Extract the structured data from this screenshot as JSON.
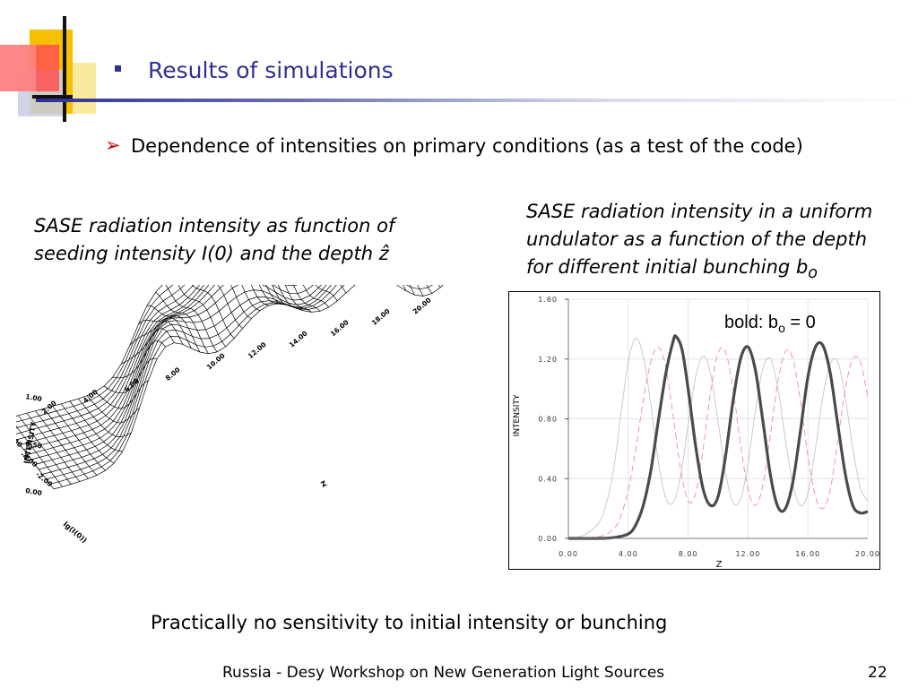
{
  "slide": {
    "title": "Results of simulations",
    "subtitle": "Dependence of intensities on primary conditions (as a test of the code)",
    "left_caption": {
      "line1": "SASE radiation intensity as function of",
      "line2": "seeding intensity I(0) and the depth ẑ"
    },
    "right_caption": {
      "line1": "SASE radiation intensity in a uniform",
      "line2": "undulator as a function of the depth",
      "line3_main": "for different initial bunching b",
      "line3_sub": "o"
    },
    "conclusion": "Practically no sensitivity to initial intensity or bunching",
    "footer": "Russia - Desy Workshop on New Generation Light Sources",
    "page_number": "22",
    "colors": {
      "title": "#2e3192",
      "arrow": "#cc0000",
      "deco_yellow": "#f5c000",
      "deco_red": "#ff5050"
    }
  },
  "chart_data": [
    {
      "type": "surface",
      "zlabel": "INTENSITY",
      "xlabel": "Z",
      "ylabel": "lg(I(0))",
      "z_ticks": [
        "0.00",
        "0.50",
        "1.00"
      ],
      "x_ticks": [
        "2.00",
        "4.00",
        "6.00",
        "8.00",
        "10.00",
        "12.00",
        "14.00",
        "16.00",
        "18.00",
        "20.00"
      ],
      "y_ticks": [
        "-2.00",
        "-4.00",
        "-6.00"
      ],
      "x_range": [
        0,
        20
      ],
      "y_range": [
        -7,
        0
      ],
      "z_range": [
        0,
        1.4
      ]
    },
    {
      "type": "line",
      "xlabel": "Z",
      "ylabel": "INTENSITY",
      "xlim": [
        0,
        20
      ],
      "ylim": [
        0,
        1.6
      ],
      "x_ticks": [
        "0.00",
        "4.00",
        "8.00",
        "12.00",
        "16.00",
        "20.00"
      ],
      "y_ticks": [
        "0.00",
        "0.40",
        "0.80",
        "1.20",
        "1.60"
      ],
      "annotation": {
        "main": "bold:  b",
        "sub": "o",
        "tail": " = 0"
      },
      "grid": true,
      "series": [
        {
          "style": "bold",
          "x": [
            0,
            2,
            3,
            4,
            4.5,
            5,
            5.5,
            6,
            6.5,
            7,
            7.2,
            7.6,
            8,
            8.5,
            9,
            9.5,
            10,
            10.5,
            11,
            11.5,
            12,
            12.5,
            13,
            13.5,
            14,
            14.5,
            15,
            15.5,
            16,
            16.5,
            17,
            17.5,
            18,
            18.5,
            19,
            19.5,
            20
          ],
          "y": [
            0,
            0,
            0.005,
            0.03,
            0.09,
            0.22,
            0.45,
            0.78,
            1.1,
            1.32,
            1.35,
            1.26,
            1.0,
            0.62,
            0.33,
            0.22,
            0.28,
            0.55,
            0.92,
            1.2,
            1.28,
            1.12,
            0.78,
            0.42,
            0.21,
            0.2,
            0.38,
            0.72,
            1.08,
            1.28,
            1.29,
            1.1,
            0.76,
            0.43,
            0.22,
            0.17,
            0.18
          ]
        },
        {
          "style": "dashed",
          "x": [
            0,
            2,
            3,
            3.5,
            4,
            4.5,
            5,
            5.5,
            6,
            6.5,
            7,
            7.5,
            8,
            8.5,
            9,
            9.5,
            10,
            10.5,
            11,
            11.5,
            12,
            12.5,
            13,
            13.5,
            14,
            14.5,
            15,
            15.5,
            16,
            16.5,
            17,
            17.5,
            18,
            18.5,
            19,
            19.5,
            20
          ],
          "y": [
            0,
            0.01,
            0.06,
            0.15,
            0.32,
            0.6,
            0.92,
            1.18,
            1.28,
            1.15,
            0.82,
            0.46,
            0.25,
            0.3,
            0.6,
            0.98,
            1.24,
            1.25,
            1.0,
            0.63,
            0.33,
            0.22,
            0.36,
            0.7,
            1.05,
            1.25,
            1.2,
            0.92,
            0.55,
            0.28,
            0.2,
            0.33,
            0.66,
            1.0,
            1.2,
            1.18,
            0.95
          ]
        },
        {
          "style": "thin",
          "x": [
            0,
            1,
            2,
            2.5,
            3,
            3.5,
            4,
            4.5,
            5,
            5.5,
            6,
            6.5,
            7,
            7.5,
            8,
            8.5,
            9,
            9.5,
            10,
            10.5,
            11,
            11.5,
            12,
            12.5,
            13,
            13.5,
            14,
            14.5,
            15,
            15.5,
            16,
            16.5,
            17,
            17.5,
            18,
            18.5,
            19,
            19.5,
            20
          ],
          "y": [
            0,
            0.02,
            0.1,
            0.22,
            0.45,
            0.82,
            1.18,
            1.34,
            1.22,
            0.9,
            0.52,
            0.27,
            0.24,
            0.42,
            0.76,
            1.08,
            1.22,
            1.1,
            0.78,
            0.44,
            0.24,
            0.26,
            0.5,
            0.86,
            1.14,
            1.2,
            1.0,
            0.66,
            0.36,
            0.22,
            0.3,
            0.6,
            0.95,
            1.17,
            1.18,
            0.94,
            0.6,
            0.34,
            0.25
          ]
        }
      ]
    }
  ]
}
